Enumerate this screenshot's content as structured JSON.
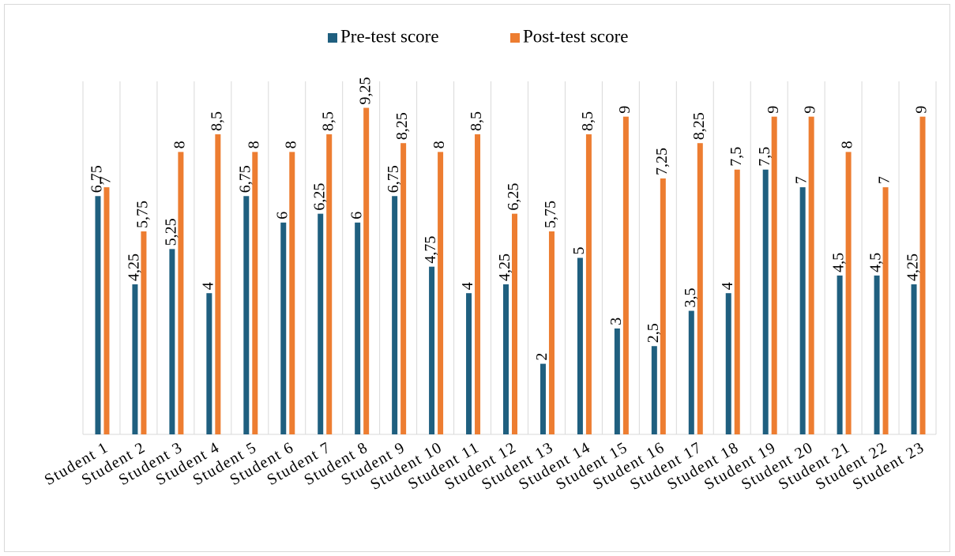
{
  "chart_data": {
    "type": "bar",
    "categories": [
      "Student 1",
      "Student 2",
      "Student 3",
      "Student 4",
      "Student 5",
      "Student 6",
      "Student 7",
      "Student 8",
      "Student 9",
      "Student 10",
      "Student 11",
      "Student 12",
      "Student 13",
      "Student 14",
      "Student 15",
      "Student 16",
      "Student 17",
      "Student 18",
      "Student 19",
      "Student 20",
      "Student 21",
      "Student 22",
      "Student 23"
    ],
    "series": [
      {
        "name": "Pre-test score",
        "color": "#1f5f7f",
        "values": [
          6.75,
          4.25,
          5.25,
          4,
          6.75,
          6,
          6.25,
          6,
          6.75,
          4.75,
          4,
          4.25,
          2,
          5,
          3,
          2.5,
          3.5,
          4,
          7.5,
          7,
          4.5,
          4.5,
          4.25
        ],
        "value_labels": [
          "6,75",
          "4,25",
          "5,25",
          "4",
          "6,75",
          "6",
          "6,25",
          "6",
          "6,75",
          "4,75",
          "4",
          "4,25",
          "2",
          "5",
          "3",
          "2,5",
          "3,5",
          "4",
          "7,5",
          "7",
          "4,5",
          "4,5",
          "4,25"
        ]
      },
      {
        "name": "Post-test score",
        "color": "#ed7d31",
        "values": [
          7,
          5.75,
          8,
          8.5,
          8,
          8,
          8.5,
          9.25,
          8.25,
          8,
          8.5,
          6.25,
          5.75,
          8.5,
          9,
          7.25,
          8.25,
          7.5,
          9,
          9,
          8,
          7,
          9
        ],
        "value_labels": [
          "7",
          "5,75",
          "8",
          "8,5",
          "8",
          "8",
          "8,5",
          "9,25",
          "8,25",
          "8",
          "8,5",
          "6,25",
          "5,75",
          "8,5",
          "9",
          "7,25",
          "8,25",
          "7,5",
          "9",
          "9",
          "8",
          "7",
          "9"
        ]
      }
    ],
    "ylim": [
      0,
      10
    ],
    "legend": "top"
  }
}
